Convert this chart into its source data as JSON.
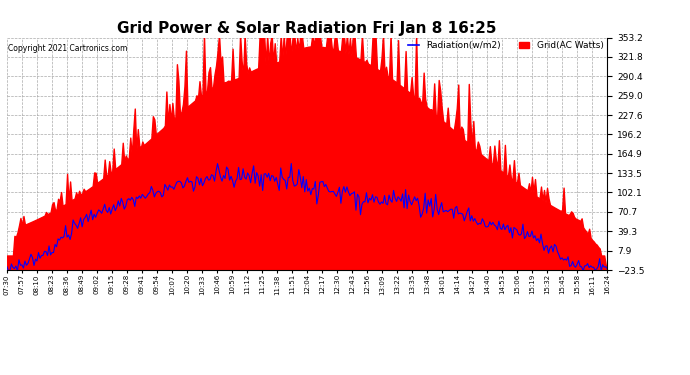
{
  "title": "Grid Power & Solar Radiation Fri Jan 8 16:25",
  "copyright": "Copyright 2021 Cartronics.com",
  "legend_radiation": "Radiation(w/m2)",
  "legend_grid": "Grid(AC Watts)",
  "yticks": [
    353.2,
    321.8,
    290.4,
    259.0,
    227.6,
    196.2,
    164.9,
    133.5,
    102.1,
    70.7,
    39.3,
    7.9,
    -23.5
  ],
  "ylim": [
    -23.5,
    353.2
  ],
  "background_color": "#ffffff",
  "grid_color": "#aaaaaa",
  "fill_color": "#ff0000",
  "line_color": "#0000ff",
  "title_fontsize": 11,
  "tick_fontsize": 6.5,
  "xtick_labels": [
    "07:30",
    "07:57",
    "08:10",
    "08:23",
    "08:36",
    "08:49",
    "09:02",
    "09:15",
    "09:28",
    "09:41",
    "09:54",
    "10:07",
    "10:20",
    "10:33",
    "10:46",
    "10:59",
    "11:12",
    "11:25",
    "11:38",
    "11:51",
    "12:04",
    "12:17",
    "12:30",
    "12:43",
    "12:56",
    "13:09",
    "13:22",
    "13:35",
    "13:48",
    "14:01",
    "14:14",
    "14:27",
    "14:40",
    "14:53",
    "15:06",
    "15:19",
    "15:32",
    "15:45",
    "15:58",
    "16:11",
    "16:24"
  ]
}
